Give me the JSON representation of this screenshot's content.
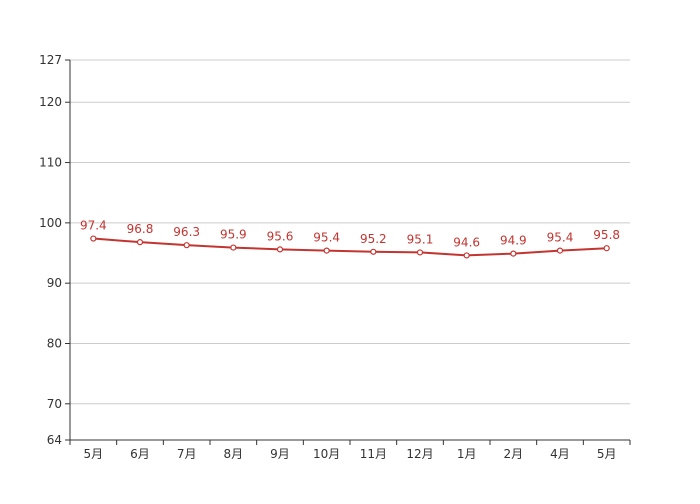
{
  "chart_data": {
    "type": "line",
    "title": "",
    "xlabel": "",
    "ylabel": "",
    "categories": [
      "5月",
      "6月",
      "7月",
      "8月",
      "9月",
      "10月",
      "11月",
      "12月",
      "1月",
      "2月",
      "4月",
      "5月"
    ],
    "series": [
      {
        "values": [
          97.4,
          96.8,
          96.3,
          95.9,
          95.6,
          95.4,
          95.2,
          95.1,
          94.6,
          94.9,
          95.4,
          95.8
        ],
        "color": "#c23531"
      }
    ],
    "ylim": [
      64,
      127
    ],
    "yticks": [
      64,
      70,
      80,
      90,
      100,
      110,
      120,
      127
    ],
    "grid": true,
    "grid_axis": "y",
    "legend": "none",
    "data_labels": true
  }
}
